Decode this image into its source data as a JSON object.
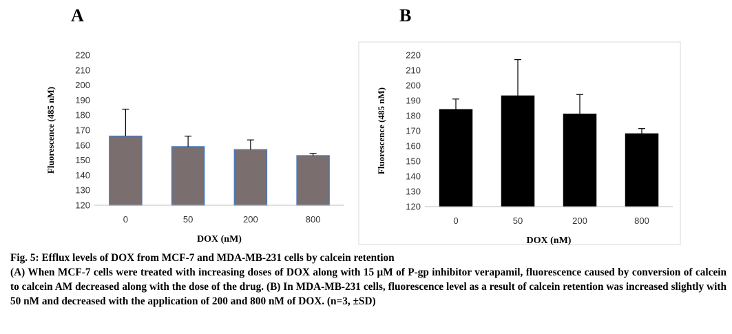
{
  "chart_data": [
    {
      "type": "bar",
      "panel_label": "A",
      "categories": [
        "0",
        "50",
        "200",
        "800"
      ],
      "values": [
        166,
        159,
        157,
        153
      ],
      "errors": [
        18,
        7,
        6.5,
        1.5
      ],
      "xlabel": "DOX (nM)",
      "ylabel": "Fluorescence (485 nM)",
      "ylim": [
        120,
        220
      ],
      "yticks": [
        "120",
        "130",
        "140",
        "150",
        "160",
        "170",
        "180",
        "190",
        "200",
        "210",
        "220"
      ],
      "bar_color": "#7a6e6e",
      "bar_edge_color": "#4a7ab8",
      "grid": false,
      "frame": false
    },
    {
      "type": "bar",
      "panel_label": "B",
      "categories": [
        "0",
        "50",
        "200",
        "800"
      ],
      "values": [
        184,
        193,
        181,
        168
      ],
      "errors": [
        7,
        24,
        13,
        3.5
      ],
      "xlabel": "DOX (nM)",
      "ylabel": "Fluorescence (485 nM)",
      "ylim": [
        120,
        220
      ],
      "yticks": [
        "120",
        "130",
        "140",
        "150",
        "160",
        "170",
        "180",
        "190",
        "200",
        "210",
        "220"
      ],
      "bar_color": "#000000",
      "bar_edge_color": "#000000",
      "grid": false,
      "frame": true
    }
  ],
  "caption": {
    "title": "Fig. 5: Efflux levels of DOX from MCF-7 and MDA-MB-231 cells by calcein retention",
    "body": "(A) When MCF-7 cells were treated with increasing doses of DOX along with 15 μM of P-gp inhibitor verapamil, fluorescence caused by conversion of calcein to calcein AM decreased along with the dose of the drug. (B) In MDA-MB-231 cells, fluorescence level as a result of calcein retention was increased slightly with 50 nM and decreased with the application of 200 and 800 nM of DOX. (n=3, ±SD)"
  }
}
